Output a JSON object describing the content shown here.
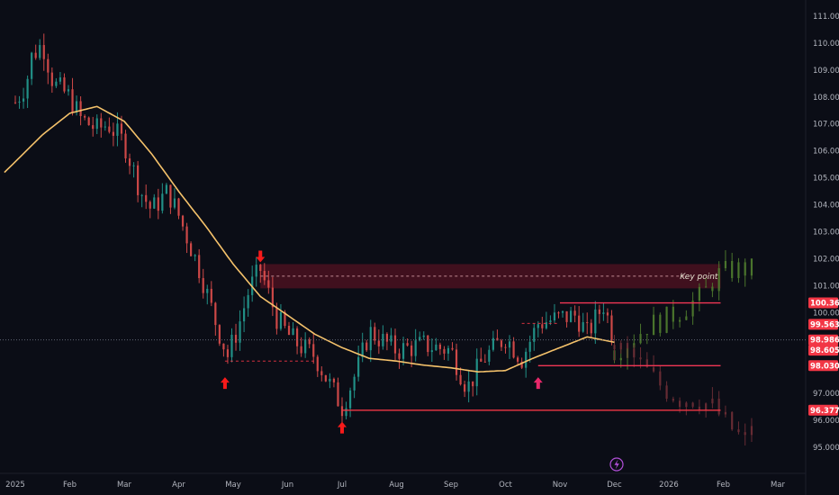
{
  "chart_data": {
    "type": "candlestick",
    "title": "",
    "x_axis": {
      "labels": [
        "2025",
        "Feb",
        "Mar",
        "Apr",
        "May",
        "Jun",
        "Jul",
        "Aug",
        "Sep",
        "Oct",
        "Nov",
        "Dec",
        "2026",
        "Feb",
        "Mar"
      ]
    },
    "y_axis": {
      "ylim": [
        94.5,
        111.2
      ],
      "labels": [
        "111.000",
        "110.000",
        "109.000",
        "108.000",
        "107.000",
        "106.000",
        "105.000",
        "104.000",
        "103.000",
        "102.000",
        "101.000",
        "100.000",
        "97.000",
        "96.000",
        "95.000"
      ]
    },
    "price_badges": [
      {
        "label": "100.360",
        "value": 100.36,
        "color": "#f23645"
      },
      {
        "label": "99.563",
        "value": 99.563,
        "color": "#f23645"
      },
      {
        "label": "98.986",
        "value": 98.986,
        "color": "#f23645"
      },
      {
        "label": "98.605",
        "value": 98.605,
        "color": "#f23645"
      },
      {
        "label": "98.030",
        "value": 98.03,
        "color": "#f23645"
      },
      {
        "label": "96.377",
        "value": 96.377,
        "color": "#f23645"
      }
    ],
    "candle_path": {
      "t": [
        0,
        0.2,
        0.3,
        0.5,
        0.7,
        1.0,
        1.2,
        1.5,
        1.7,
        2.0,
        2.3,
        2.5,
        2.8,
        3.0,
        3.4,
        3.7,
        3.9,
        4.1,
        4.3,
        4.5,
        4.8,
        5.0,
        5.2,
        5.5,
        5.7,
        6.0,
        6.3,
        6.5,
        7.0,
        7.5,
        8.0,
        8.3,
        8.6,
        9.0,
        9.3,
        9.6,
        10.0,
        10.3,
        10.5,
        10.8,
        11.0
      ],
      "price": [
        107.8,
        108.5,
        109.5,
        110.0,
        108.5,
        108.0,
        107.2,
        106.8,
        107.0,
        106.3,
        104.5,
        103.8,
        104.5,
        103.6,
        101.5,
        99.5,
        98.4,
        99.5,
        100.9,
        101.6,
        99.8,
        99.2,
        98.8,
        98.4,
        97.6,
        96.5,
        98.0,
        99.3,
        98.6,
        98.8,
        98.6,
        97.2,
        98.3,
        99.1,
        98.3,
        99.6,
        99.8,
        99.9,
        99.2,
        100.3,
        99.0
      ]
    },
    "moving_average": {
      "color": "#f5c26b",
      "t": [
        -0.2,
        0.5,
        1.0,
        1.5,
        2.0,
        2.5,
        3.0,
        3.5,
        4.0,
        4.5,
        5.0,
        5.5,
        6.0,
        6.5,
        7.0,
        7.5,
        8.0,
        8.5,
        9.0,
        9.5,
        10.0,
        10.5,
        11.0
      ],
      "price": [
        105.2,
        106.6,
        107.4,
        107.65,
        107.1,
        105.9,
        104.5,
        103.2,
        101.8,
        100.6,
        99.9,
        99.2,
        98.7,
        98.3,
        98.2,
        98.05,
        97.95,
        97.8,
        97.85,
        98.3,
        98.7,
        99.1,
        98.9
      ]
    },
    "projection_up": {
      "color": "#4e7a2e",
      "t": [
        11.0,
        11.3,
        11.6,
        12.0,
        12.3,
        12.6,
        12.9,
        13.2,
        13.6
      ],
      "price": [
        98.6,
        99.0,
        99.5,
        99.8,
        100.2,
        100.6,
        101.4,
        101.6,
        101.6
      ]
    },
    "projection_down": {
      "color": "#6b2d35",
      "t": [
        11.0,
        11.3,
        11.6,
        11.9,
        12.2,
        12.5,
        12.8,
        13.1,
        13.4,
        13.6
      ],
      "price": [
        98.8,
        98.4,
        97.8,
        97.2,
        96.8,
        96.8,
        96.5,
        95.8,
        95.2,
        96.4
      ]
    },
    "resistance_zone": {
      "from": 100.9,
      "to": 101.8,
      "t_start": 4.5,
      "t_end": 12.95,
      "label": "Key point",
      "line_value": 101.35
    },
    "horizontal_lines": [
      {
        "value": 100.36,
        "t_start": 10.0,
        "t_end": 12.95,
        "color": "#f23655"
      },
      {
        "value": 98.03,
        "t_start": 9.6,
        "t_end": 12.95,
        "color": "#f23655"
      },
      {
        "value": 96.377,
        "t_start": 6.0,
        "t_end": 12.95,
        "color": "#f23645"
      }
    ],
    "dashed_lines": [
      {
        "value": 98.2,
        "t_start": 3.85,
        "t_end": 5.5,
        "color": "#f23645"
      },
      {
        "value": 99.6,
        "t_start": 9.3,
        "t_end": 9.95,
        "color": "#f23645"
      }
    ],
    "current_price_line": 98.986,
    "arrows": [
      {
        "t": 3.85,
        "price": 97.6,
        "dir": "up",
        "color": "#f81a1a"
      },
      {
        "t": 4.5,
        "price": 102.3,
        "dir": "down",
        "color": "#f81a1a"
      },
      {
        "t": 6.0,
        "price": 95.95,
        "dir": "up",
        "color": "#f81a1a"
      },
      {
        "t": 9.6,
        "price": 97.6,
        "dir": "up",
        "color": "#e8286a"
      }
    ],
    "colors": {
      "background": "#0b0d16",
      "up_candle": "#26a69a",
      "down_candle": "#ef5350",
      "badge": "#f23645"
    }
  }
}
